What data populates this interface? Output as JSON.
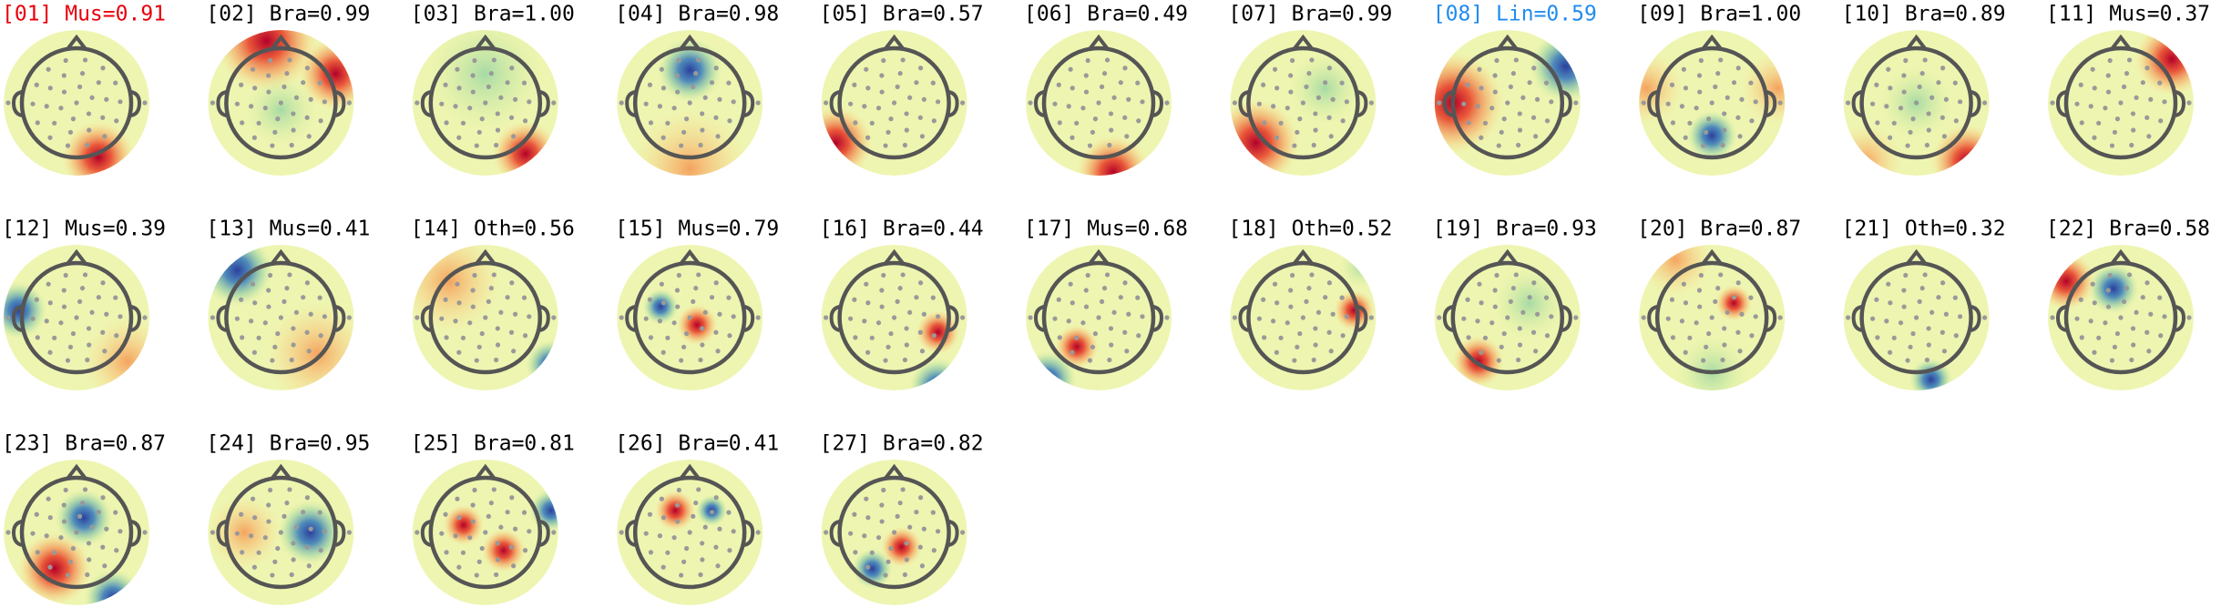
{
  "components": [
    {
      "label": "[01] Mus=0.91",
      "color": "#e8000b"
    },
    {
      "label": "[02] Bra=0.99",
      "color": "#000000"
    },
    {
      "label": "[03] Bra=1.00",
      "color": "#000000"
    },
    {
      "label": "[04] Bra=0.98",
      "color": "#000000"
    },
    {
      "label": "[05] Bra=0.57",
      "color": "#000000"
    },
    {
      "label": "[06] Bra=0.49",
      "color": "#000000"
    },
    {
      "label": "[07] Bra=0.99",
      "color": "#000000"
    },
    {
      "label": "[08] Lin=0.59",
      "color": "#1f8cee"
    },
    {
      "label": "[09] Bra=1.00",
      "color": "#000000"
    },
    {
      "label": "[10] Bra=0.89",
      "color": "#000000"
    },
    {
      "label": "[11] Mus=0.37",
      "color": "#000000"
    },
    {
      "label": "[12] Mus=0.39",
      "color": "#000000"
    },
    {
      "label": "[13] Mus=0.41",
      "color": "#000000"
    },
    {
      "label": "[14] Oth=0.56",
      "color": "#000000"
    },
    {
      "label": "[15] Mus=0.79",
      "color": "#000000"
    },
    {
      "label": "[16] Bra=0.44",
      "color": "#000000"
    },
    {
      "label": "[17] Mus=0.68",
      "color": "#000000"
    },
    {
      "label": "[18] Oth=0.52",
      "color": "#000000"
    },
    {
      "label": "[19] Bra=0.93",
      "color": "#000000"
    },
    {
      "label": "[20] Bra=0.87",
      "color": "#000000"
    },
    {
      "label": "[21] Oth=0.32",
      "color": "#000000"
    },
    {
      "label": "[22] Bra=0.58",
      "color": "#000000"
    },
    {
      "label": "[23] Bra=0.87",
      "color": "#000000"
    },
    {
      "label": "[24] Bra=0.95",
      "color": "#000000"
    },
    {
      "label": "[25] Bra=0.81",
      "color": "#000000"
    },
    {
      "label": "[26] Bra=0.41",
      "color": "#000000"
    },
    {
      "label": "[27] Bra=0.82",
      "color": "#000000"
    }
  ]
}
